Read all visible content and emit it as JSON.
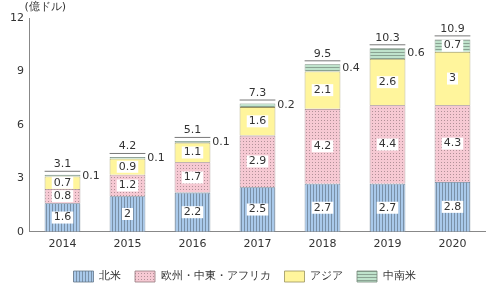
{
  "chart_data": {
    "type": "bar",
    "stacked": true,
    "data_labels": true,
    "grid": false,
    "legend": "bottom",
    "y_label": "(億ドル)",
    "categories": [
      "2014",
      "2015",
      "2016",
      "2017",
      "2018",
      "2019",
      "2020"
    ],
    "series": [
      {
        "name": "北米",
        "color": "#a9c9ea",
        "values": [
          1.6,
          2.0,
          2.2,
          2.5,
          2.7,
          2.7,
          2.8
        ]
      },
      {
        "name": "欧州・中東・アフリカ",
        "color": "#f6c9d3",
        "values": [
          0.8,
          1.2,
          1.7,
          2.9,
          4.2,
          4.4,
          4.3
        ]
      },
      {
        "name": "アジア",
        "color": "#fff59c",
        "values": [
          0.7,
          0.9,
          1.1,
          1.6,
          2.1,
          2.6,
          3.0
        ]
      },
      {
        "name": "中南米",
        "color": "#bfe3cc",
        "values": [
          0.1,
          0.1,
          0.1,
          0.2,
          0.4,
          0.6,
          0.7
        ]
      }
    ],
    "totals": [
      3.1,
      4.2,
      5.1,
      7.3,
      9.5,
      10.3,
      10.9
    ],
    "ylim": [
      0,
      12
    ],
    "yticks": [
      0,
      3,
      6,
      9,
      12
    ]
  }
}
